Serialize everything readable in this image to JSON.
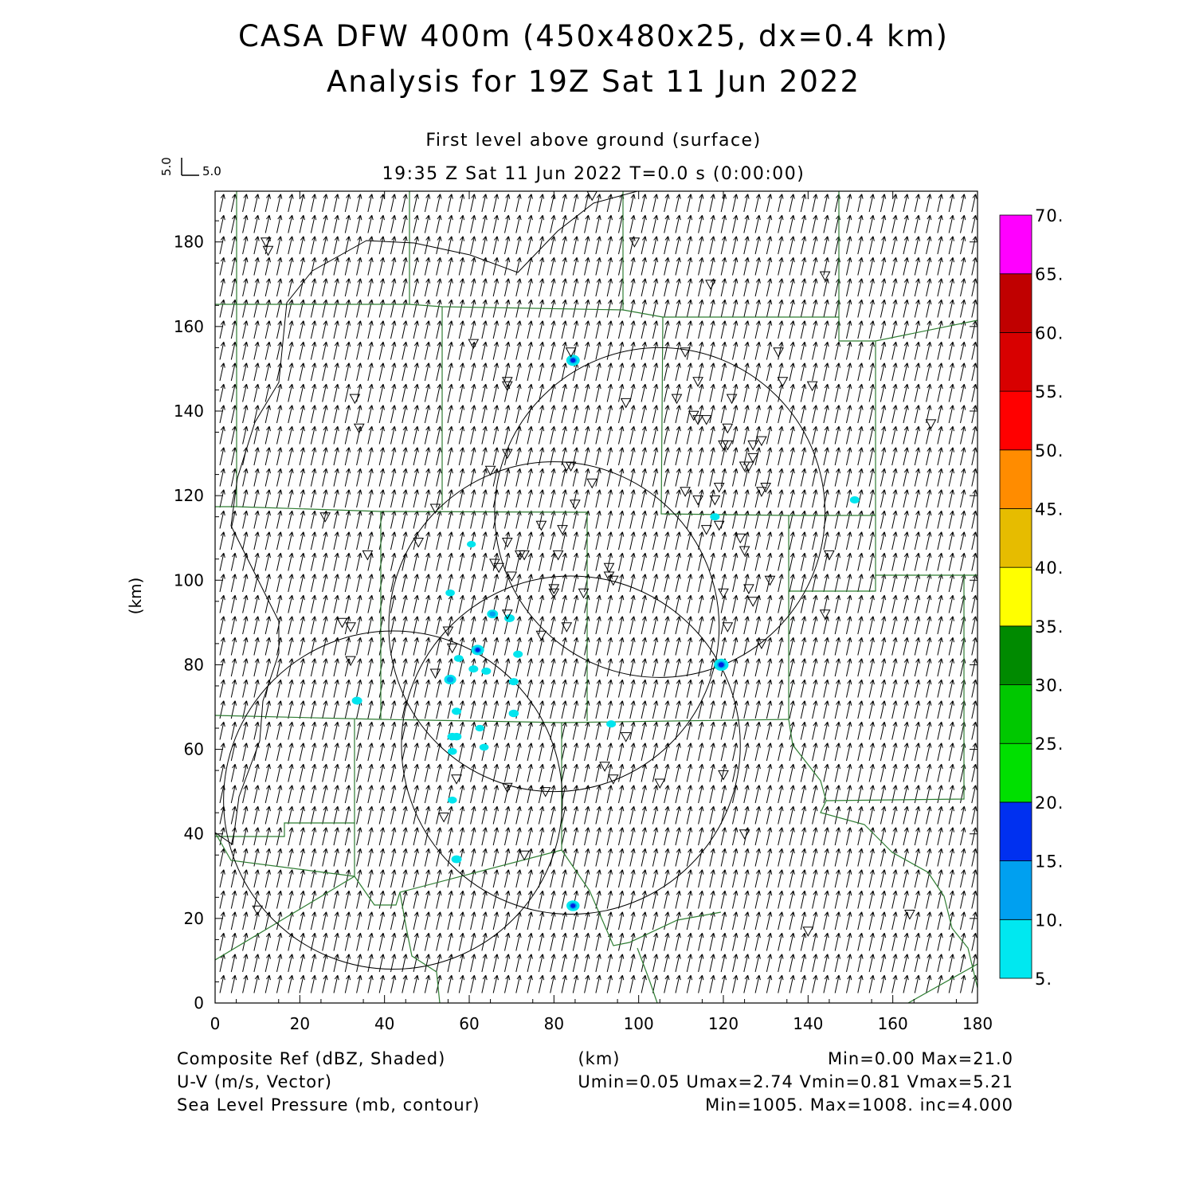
{
  "title": {
    "line1": "CASA DFW 400m (450x480x25, dx=0.4 km)",
    "line2": "Analysis for 19Z Sat 11 Jun 2022"
  },
  "subtitle": {
    "level": "First level above ground (surface)",
    "time": "19:35 Z Sat 11 Jun 2022    T=0.0 s (0:00:00)"
  },
  "vector_key": {
    "u_label": "5.0",
    "v_label": "5.0"
  },
  "footer": {
    "field1": "Composite Ref (dBZ, Shaded)",
    "field2": "U-V (m/s, Vector)",
    "field3": "Sea Level Pressure (mb, contour)",
    "center_unit": "(km)",
    "stats1": "Min=0.00 Max=21.0",
    "stats2": "Umin=0.05 Umax=2.74 Vmin=0.81 Vmax=5.21",
    "stats3": "Min=1005. Max=1008. inc=4.000"
  },
  "colors": {
    "boundary": "#2e7d32",
    "contour": "#000000",
    "shade_low": "#00e5ee",
    "shade_mid": "#00a0f0",
    "shade_high": "#0020e0"
  },
  "chart_data": {
    "type": "heatmap",
    "xlabel": "(km)",
    "ylabel": "(km)",
    "xlim": [
      0,
      180
    ],
    "ylim": [
      0,
      192
    ],
    "xticks": [
      "0",
      "20",
      "40",
      "60",
      "80",
      "100",
      "120",
      "140",
      "160",
      "180"
    ],
    "yticks": [
      "0",
      "20",
      "40",
      "60",
      "80",
      "100",
      "120",
      "140",
      "160",
      "180"
    ],
    "colorbar": {
      "labels": [
        "5.",
        "10.",
        "15.",
        "20.",
        "25.",
        "30.",
        "35.",
        "40.",
        "45.",
        "50.",
        "55.",
        "60.",
        "65.",
        "70."
      ],
      "colors": [
        "#00e8f0",
        "#00a0f0",
        "#0030f0",
        "#00e000",
        "#00c800",
        "#008a00",
        "#ffff00",
        "#e6bc00",
        "#ff8c00",
        "#ff0000",
        "#d80000",
        "#c00000",
        "#ff00ff"
      ]
    },
    "radar_circles": [
      {
        "cx": 105,
        "cy": 116,
        "r": 39
      },
      {
        "cx": 80,
        "cy": 89,
        "r": 39
      },
      {
        "cx": 42,
        "cy": 48,
        "r": 40
      },
      {
        "cx": 84,
        "cy": 61,
        "r": 40
      }
    ],
    "echoes": [
      {
        "x": 84.5,
        "y": 152,
        "dbz": 18
      },
      {
        "x": 119.5,
        "y": 80,
        "dbz": 21
      },
      {
        "x": 84.5,
        "y": 23,
        "dbz": 17
      },
      {
        "x": 62,
        "y": 83.5,
        "dbz": 16
      },
      {
        "x": 55.5,
        "y": 76.5,
        "dbz": 14
      },
      {
        "x": 65.5,
        "y": 92,
        "dbz": 11
      },
      {
        "x": 69.5,
        "y": 91,
        "dbz": 9
      },
      {
        "x": 33.5,
        "y": 71.5,
        "dbz": 9
      },
      {
        "x": 57,
        "y": 34,
        "dbz": 9
      },
      {
        "x": 57,
        "y": 63,
        "dbz": 8
      },
      {
        "x": 56,
        "y": 63,
        "dbz": 8
      },
      {
        "x": 70.5,
        "y": 68.5,
        "dbz": 8
      },
      {
        "x": 61,
        "y": 79,
        "dbz": 7
      },
      {
        "x": 64,
        "y": 78.5,
        "dbz": 7
      },
      {
        "x": 70.5,
        "y": 76,
        "dbz": 7
      },
      {
        "x": 71.5,
        "y": 82.5,
        "dbz": 7
      },
      {
        "x": 57,
        "y": 69,
        "dbz": 7
      },
      {
        "x": 93.5,
        "y": 66,
        "dbz": 7
      },
      {
        "x": 118,
        "y": 115,
        "dbz": 7
      },
      {
        "x": 151,
        "y": 119,
        "dbz": 7
      },
      {
        "x": 55.5,
        "y": 97,
        "dbz": 6
      },
      {
        "x": 57.5,
        "y": 81.5,
        "dbz": 6
      },
      {
        "x": 63.5,
        "y": 60.5,
        "dbz": 6
      },
      {
        "x": 56,
        "y": 59.5,
        "dbz": 6
      },
      {
        "x": 56,
        "y": 48,
        "dbz": 6
      },
      {
        "x": 60.5,
        "y": 108.5,
        "dbz": 5
      },
      {
        "x": 62.5,
        "y": 65,
        "dbz": 5
      }
    ],
    "wind_vector": {
      "u": 1.0,
      "v": 4.5
    },
    "stations": [
      [
        12,
        180
      ],
      [
        12.5,
        178
      ],
      [
        89,
        191
      ],
      [
        99,
        180
      ],
      [
        117,
        170
      ],
      [
        144,
        172
      ],
      [
        61,
        156
      ],
      [
        84,
        154
      ],
      [
        69,
        147
      ],
      [
        69,
        146
      ],
      [
        33,
        143
      ],
      [
        34,
        136
      ],
      [
        97,
        142
      ],
      [
        111,
        154
      ],
      [
        114,
        147
      ],
      [
        133,
        154
      ],
      [
        134,
        147
      ],
      [
        141,
        146
      ],
      [
        109,
        143
      ],
      [
        113,
        139
      ],
      [
        114,
        138
      ],
      [
        116,
        138
      ],
      [
        122,
        143
      ],
      [
        121,
        136
      ],
      [
        120,
        132
      ],
      [
        121,
        132
      ],
      [
        127,
        132
      ],
      [
        129,
        133
      ],
      [
        127,
        129
      ],
      [
        125,
        127
      ],
      [
        126,
        127
      ],
      [
        69,
        130
      ],
      [
        65,
        126
      ],
      [
        83,
        127
      ],
      [
        84,
        127
      ],
      [
        89,
        123
      ],
      [
        85,
        118
      ],
      [
        111,
        121
      ],
      [
        114,
        119
      ],
      [
        119,
        122
      ],
      [
        118,
        119
      ],
      [
        129,
        121
      ],
      [
        130,
        122
      ],
      [
        169,
        137
      ],
      [
        52,
        117
      ],
      [
        26,
        115
      ],
      [
        36,
        106
      ],
      [
        48,
        109
      ],
      [
        69,
        109
      ],
      [
        77,
        113
      ],
      [
        82,
        112
      ],
      [
        66,
        104
      ],
      [
        67,
        103
      ],
      [
        70,
        101
      ],
      [
        72,
        106
      ],
      [
        73,
        106
      ],
      [
        81,
        106
      ],
      [
        93,
        103
      ],
      [
        93,
        101
      ],
      [
        94,
        100
      ],
      [
        116,
        112
      ],
      [
        119,
        113
      ],
      [
        124,
        110
      ],
      [
        125,
        107
      ],
      [
        120,
        97
      ],
      [
        126,
        98
      ],
      [
        127,
        95
      ],
      [
        131,
        100
      ],
      [
        145,
        106
      ],
      [
        144,
        92
      ],
      [
        80,
        98
      ],
      [
        80,
        97
      ],
      [
        87,
        97
      ],
      [
        69,
        92
      ],
      [
        83,
        89
      ],
      [
        77,
        87
      ],
      [
        121,
        89
      ],
      [
        129,
        85
      ],
      [
        30,
        90
      ],
      [
        32,
        89
      ],
      [
        32,
        81
      ],
      [
        55,
        88
      ],
      [
        56,
        84
      ],
      [
        52,
        78
      ],
      [
        97,
        63
      ],
      [
        92,
        56
      ],
      [
        94,
        53
      ],
      [
        105,
        52
      ],
      [
        120,
        54
      ],
      [
        69,
        51
      ],
      [
        78,
        50
      ],
      [
        57,
        53
      ],
      [
        54,
        44
      ],
      [
        125,
        40
      ],
      [
        73,
        35
      ],
      [
        10,
        22
      ],
      [
        140,
        17
      ],
      [
        164,
        21
      ]
    ]
  }
}
